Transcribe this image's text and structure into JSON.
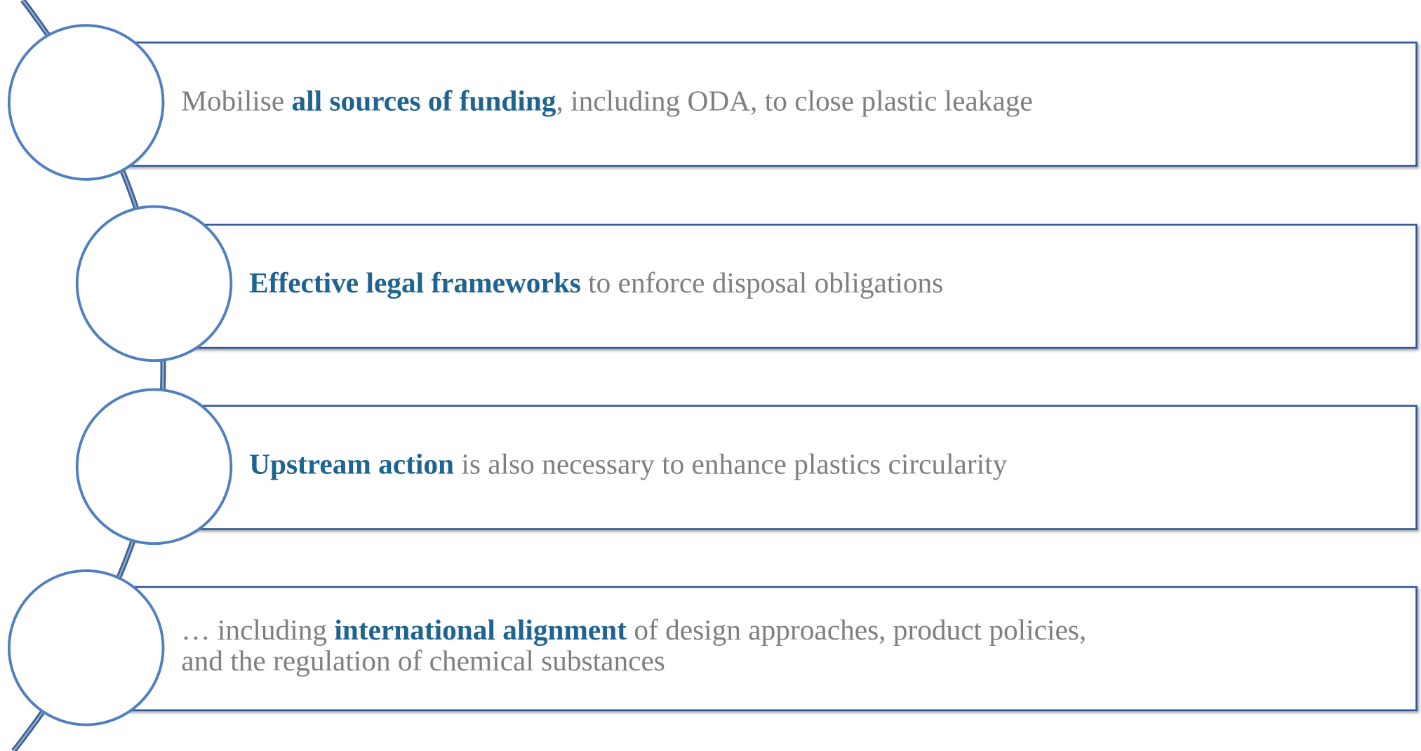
{
  "items": [
    {
      "lines": [
        [
          {
            "text": "Mobilise ",
            "bold": false
          },
          {
            "text": "all sources of funding",
            "bold": true
          },
          {
            "text": ", including ODA, to close plastic leakage",
            "bold": false
          }
        ]
      ]
    },
    {
      "lines": [
        [
          {
            "text": "Effective legal frameworks",
            "bold": true
          },
          {
            "text": " to enforce disposal obligations",
            "bold": false
          }
        ]
      ]
    },
    {
      "lines": [
        [
          {
            "text": "Upstream action",
            "bold": true
          },
          {
            "text": " is also necessary to enhance plastics circularity",
            "bold": false
          }
        ]
      ]
    },
    {
      "lines": [
        [
          {
            "text": "… including ",
            "bold": false
          },
          {
            "text": "international alignment",
            "bold": true
          },
          {
            "text": " of design approaches, product policies,",
            "bold": false
          }
        ],
        [
          {
            "text": "and the regulation of chemical substances",
            "bold": false
          }
        ]
      ]
    }
  ]
}
